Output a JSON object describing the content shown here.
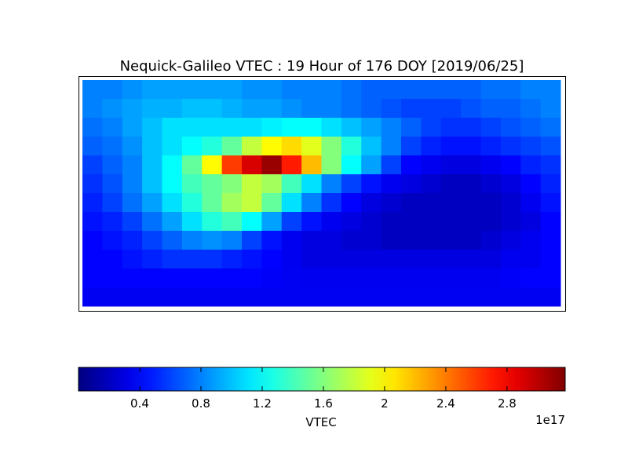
{
  "chart_data": {
    "type": "heatmap",
    "title": "Nequick-Galileo VTEC : 19 Hour of 176 DOY [2019/06/25]",
    "colormap": "jet",
    "values": [
      [
        0.8,
        0.8,
        0.85,
        0.9,
        0.9,
        0.9,
        0.9,
        0.9,
        0.85,
        0.85,
        0.8,
        0.8,
        0.8,
        0.75,
        0.7,
        0.7,
        0.7,
        0.7,
        0.7,
        0.7,
        0.75,
        0.75,
        0.8,
        0.8
      ],
      [
        0.8,
        0.85,
        0.9,
        0.95,
        0.95,
        1.0,
        1.0,
        0.95,
        0.9,
        0.9,
        0.85,
        0.8,
        0.8,
        0.75,
        0.7,
        0.65,
        0.6,
        0.6,
        0.6,
        0.65,
        0.7,
        0.7,
        0.75,
        0.8
      ],
      [
        0.75,
        0.8,
        0.9,
        1.0,
        1.1,
        1.1,
        1.1,
        1.1,
        1.1,
        1.15,
        1.2,
        1.2,
        1.1,
        1.0,
        0.9,
        0.8,
        0.7,
        0.6,
        0.55,
        0.55,
        0.6,
        0.65,
        0.7,
        0.75
      ],
      [
        0.7,
        0.75,
        0.85,
        1.0,
        1.1,
        1.2,
        1.3,
        1.5,
        1.8,
        2.0,
        2.1,
        1.9,
        1.6,
        1.3,
        1.0,
        0.8,
        0.6,
        0.5,
        0.45,
        0.45,
        0.5,
        0.55,
        0.6,
        0.65
      ],
      [
        0.6,
        0.7,
        0.8,
        1.0,
        1.2,
        1.5,
        2.0,
        2.6,
        2.9,
        3.1,
        2.7,
        2.2,
        1.6,
        1.2,
        0.9,
        0.6,
        0.4,
        0.35,
        0.3,
        0.3,
        0.35,
        0.4,
        0.5,
        0.55
      ],
      [
        0.55,
        0.65,
        0.8,
        1.0,
        1.2,
        1.4,
        1.5,
        1.6,
        1.8,
        1.7,
        1.4,
        1.1,
        0.8,
        0.6,
        0.45,
        0.35,
        0.3,
        0.25,
        0.2,
        0.2,
        0.25,
        0.3,
        0.4,
        0.5
      ],
      [
        0.5,
        0.6,
        0.75,
        0.9,
        1.1,
        1.3,
        1.5,
        1.7,
        1.8,
        1.5,
        1.1,
        0.8,
        0.55,
        0.4,
        0.3,
        0.25,
        0.2,
        0.2,
        0.2,
        0.2,
        0.2,
        0.25,
        0.35,
        0.45
      ],
      [
        0.45,
        0.5,
        0.6,
        0.75,
        0.9,
        1.1,
        1.3,
        1.4,
        1.2,
        0.9,
        0.6,
        0.45,
        0.35,
        0.3,
        0.25,
        0.2,
        0.2,
        0.2,
        0.2,
        0.2,
        0.2,
        0.25,
        0.3,
        0.4
      ],
      [
        0.4,
        0.45,
        0.5,
        0.6,
        0.7,
        0.8,
        0.85,
        0.8,
        0.6,
        0.45,
        0.35,
        0.3,
        0.3,
        0.25,
        0.25,
        0.2,
        0.2,
        0.2,
        0.2,
        0.2,
        0.25,
        0.3,
        0.35,
        0.4
      ],
      [
        0.4,
        0.4,
        0.45,
        0.5,
        0.55,
        0.55,
        0.55,
        0.5,
        0.45,
        0.4,
        0.35,
        0.3,
        0.3,
        0.3,
        0.3,
        0.3,
        0.3,
        0.3,
        0.3,
        0.3,
        0.3,
        0.35,
        0.35,
        0.4
      ],
      [
        0.4,
        0.4,
        0.4,
        0.4,
        0.4,
        0.4,
        0.4,
        0.4,
        0.4,
        0.38,
        0.36,
        0.35,
        0.35,
        0.35,
        0.35,
        0.35,
        0.35,
        0.35,
        0.35,
        0.35,
        0.35,
        0.38,
        0.4,
        0.4
      ],
      [
        0.36,
        0.36,
        0.36,
        0.36,
        0.36,
        0.36,
        0.36,
        0.36,
        0.36,
        0.36,
        0.36,
        0.36,
        0.36,
        0.36,
        0.36,
        0.36,
        0.36,
        0.36,
        0.36,
        0.36,
        0.36,
        0.36,
        0.36,
        0.36
      ]
    ],
    "colorbar": {
      "label": "VTEC",
      "offset_label": "1e17",
      "clim": [
        0,
        3.18
      ],
      "ticks": [
        0.4,
        0.8,
        1.2,
        1.6,
        2.0,
        2.4,
        2.8
      ]
    }
  }
}
